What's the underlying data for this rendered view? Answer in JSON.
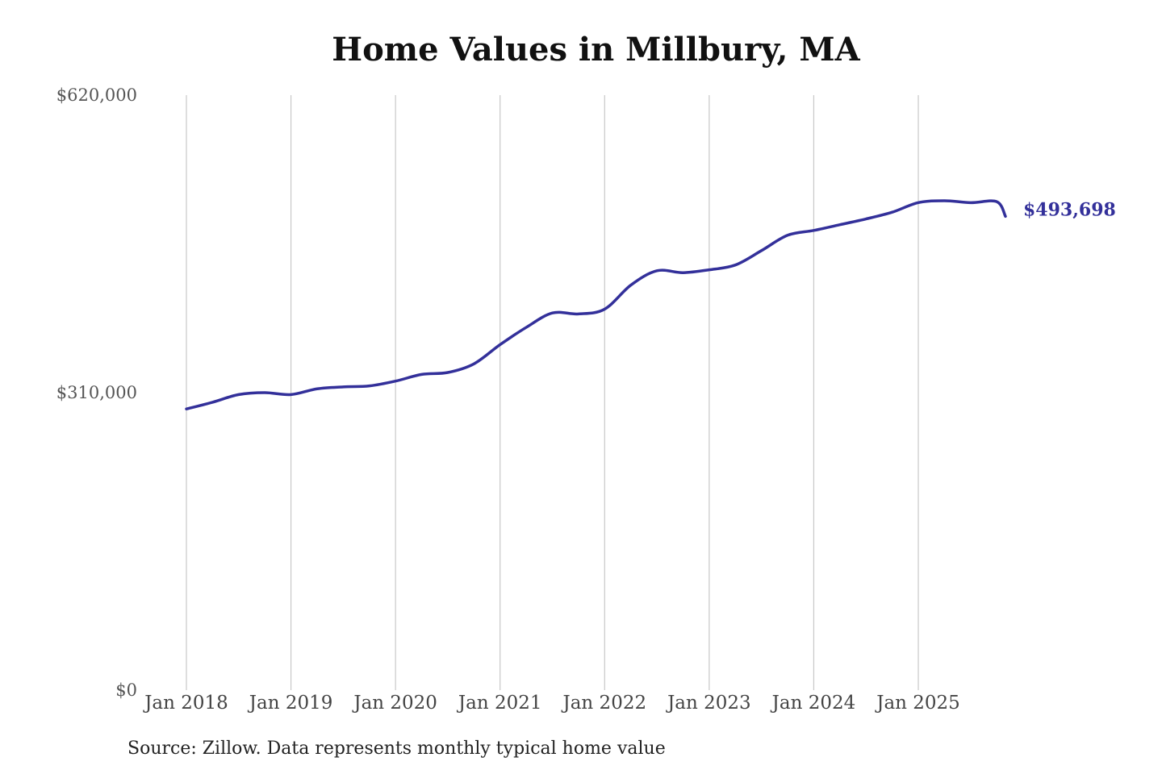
{
  "chart_data": {
    "type": "line",
    "title": "Home Values in Millbury, MA",
    "xlabel": "",
    "ylabel": "",
    "ylim": [
      0,
      620000
    ],
    "xlim": [
      "2018-01",
      "2025-11"
    ],
    "y_ticks": [
      {
        "value": 0,
        "label": "$0"
      },
      {
        "value": 310000,
        "label": "$310,000"
      },
      {
        "value": 620000,
        "label": "$620,000"
      }
    ],
    "x_ticks": [
      {
        "value": "2018-01",
        "label": "Jan 2018"
      },
      {
        "value": "2019-01",
        "label": "Jan 2019"
      },
      {
        "value": "2020-01",
        "label": "Jan 2020"
      },
      {
        "value": "2021-01",
        "label": "Jan 2021"
      },
      {
        "value": "2022-01",
        "label": "Jan 2022"
      },
      {
        "value": "2023-01",
        "label": "Jan 2023"
      },
      {
        "value": "2024-01",
        "label": "Jan 2024"
      },
      {
        "value": "2025-01",
        "label": "Jan 2025"
      }
    ],
    "grid": {
      "vertical": true,
      "horizontal": false
    },
    "series": [
      {
        "color": "#33309a",
        "x": [
          "2018-01",
          "2018-04",
          "2018-07",
          "2018-10",
          "2019-01",
          "2019-04",
          "2019-07",
          "2019-10",
          "2020-01",
          "2020-04",
          "2020-07",
          "2020-10",
          "2021-01",
          "2021-04",
          "2021-07",
          "2021-10",
          "2022-01",
          "2022-04",
          "2022-07",
          "2022-10",
          "2023-01",
          "2023-04",
          "2023-07",
          "2023-10",
          "2024-01",
          "2024-04",
          "2024-07",
          "2024-10",
          "2025-01",
          "2025-04",
          "2025-07",
          "2025-10",
          "2025-11"
        ],
        "values": [
          293000,
          300000,
          308000,
          310000,
          308000,
          314000,
          316000,
          317000,
          322000,
          329000,
          331000,
          340000,
          360000,
          378000,
          393000,
          392000,
          397000,
          422000,
          437000,
          435000,
          438000,
          443000,
          458000,
          474000,
          479000,
          485000,
          491000,
          498000,
          508000,
          510000,
          508000,
          509000,
          493698
        ]
      }
    ],
    "end_label": "$493,698"
  },
  "source_note": "Source: Zillow. Data represents monthly typical home value"
}
